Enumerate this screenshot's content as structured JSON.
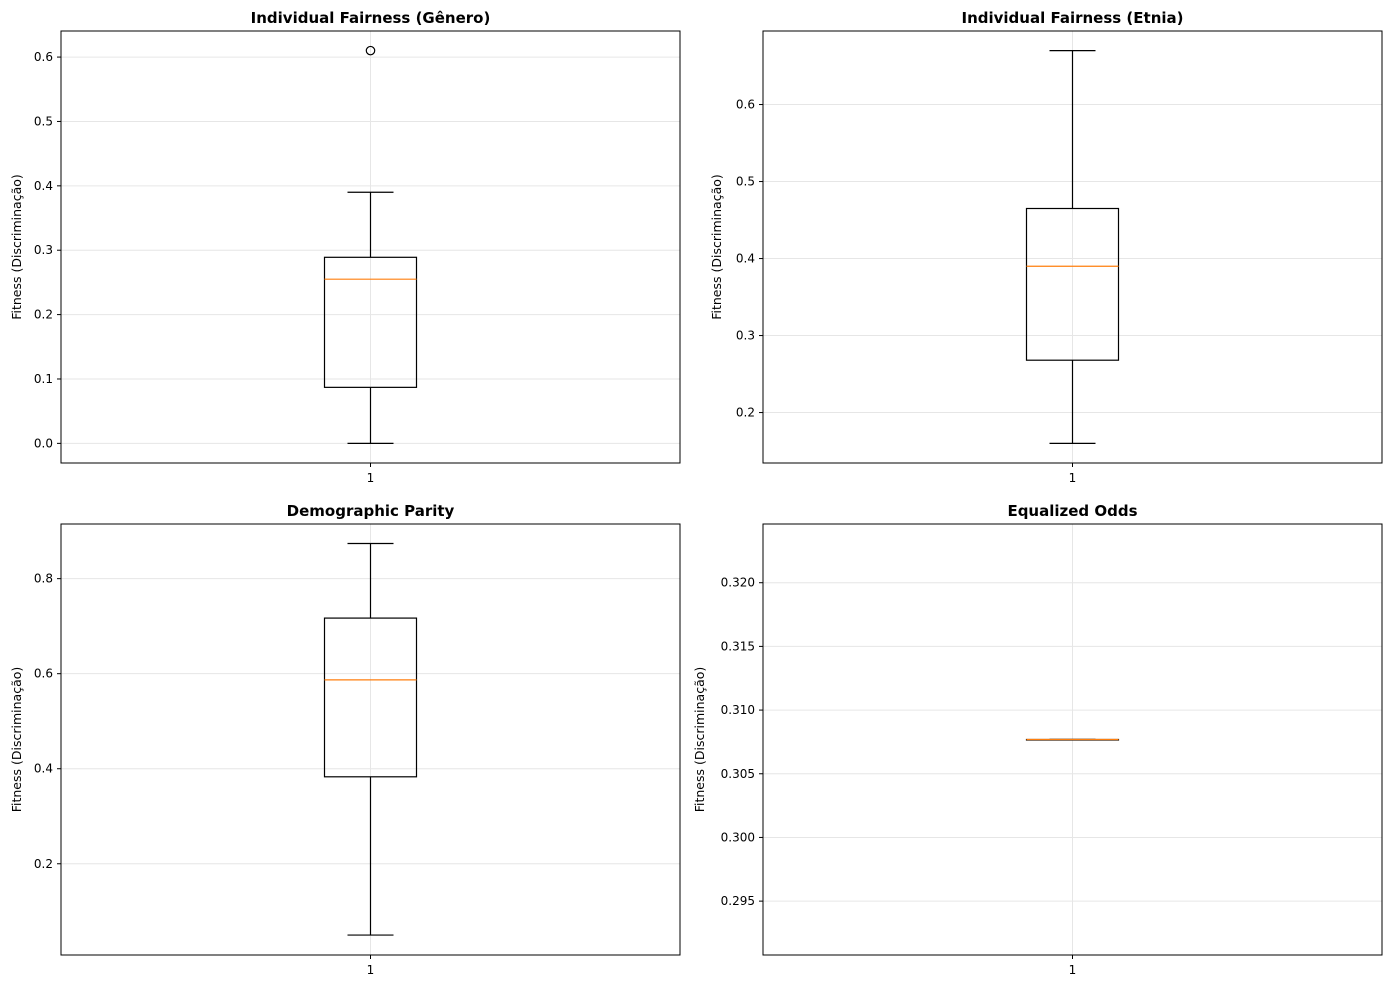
{
  "chart_data": [
    {
      "type": "box",
      "title": "Individual Fairness (Gênero)",
      "ylabel": "Fitness (Discriminação)",
      "xlabel": "",
      "categories": [
        "1"
      ],
      "ylim": [
        -0.0305,
        0.6405
      ],
      "yticks": [
        "0.0",
        "0.1",
        "0.2",
        "0.3",
        "0.4",
        "0.5",
        "0.6"
      ],
      "ytick_values": [
        0.0,
        0.1,
        0.2,
        0.3,
        0.4,
        0.5,
        0.6
      ],
      "grid": true,
      "box": {
        "whislo": 0.0,
        "q1": 0.087,
        "med": 0.255,
        "q3": 0.289,
        "whishi": 0.39,
        "fliers": [
          0.61
        ]
      }
    },
    {
      "type": "box",
      "title": "Individual Fairness (Etnia)",
      "ylabel": "Fitness (Discriminação)",
      "xlabel": "",
      "categories": [
        "1"
      ],
      "ylim": [
        0.1345,
        0.6955
      ],
      "yticks": [
        "0.2",
        "0.3",
        "0.4",
        "0.5",
        "0.6"
      ],
      "ytick_values": [
        0.2,
        0.3,
        0.4,
        0.5,
        0.6
      ],
      "grid": true,
      "box": {
        "whislo": 0.16,
        "q1": 0.268,
        "med": 0.39,
        "q3": 0.465,
        "whishi": 0.67,
        "fliers": []
      }
    },
    {
      "type": "box",
      "title": "Demographic Parity",
      "ylabel": "Fitness (Discriminação)",
      "xlabel": "",
      "categories": [
        "1"
      ],
      "ylim": [
        0.008,
        0.915
      ],
      "yticks": [
        "0.2",
        "0.4",
        "0.6",
        "0.8"
      ],
      "ytick_values": [
        0.2,
        0.4,
        0.6,
        0.8
      ],
      "grid": true,
      "box": {
        "whislo": 0.05,
        "q1": 0.383,
        "med": 0.587,
        "q3": 0.717,
        "whishi": 0.874,
        "fliers": []
      }
    },
    {
      "type": "box",
      "title": "Equalized Odds",
      "ylabel": "Fitness (Discriminação)",
      "xlabel": "",
      "categories": [
        "1"
      ],
      "ylim": [
        0.29077,
        0.32461
      ],
      "yticks": [
        "0.295",
        "0.300",
        "0.305",
        "0.310",
        "0.315",
        "0.320"
      ],
      "ytick_values": [
        0.295,
        0.3,
        0.305,
        0.31,
        0.315,
        0.32
      ],
      "grid": true,
      "box": {
        "whislo": 0.30769,
        "q1": 0.30769,
        "med": 0.30769,
        "q3": 0.30769,
        "whishi": 0.30769,
        "fliers": []
      }
    }
  ],
  "colors": {
    "box": "#000000",
    "median": "#ff7f0e",
    "grid": "#e6e6e6",
    "spine": "#000000"
  }
}
